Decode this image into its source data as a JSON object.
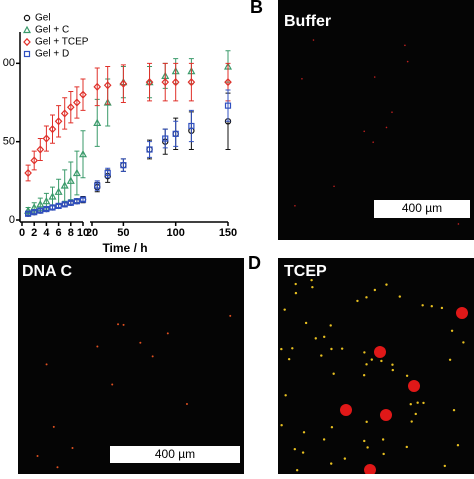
{
  "chart_data": {
    "type": "line",
    "x_label": "Time / h",
    "x_segments": [
      [
        0,
        10
      ],
      [
        20,
        150
      ]
    ],
    "xticks": [
      0,
      2,
      4,
      6,
      8,
      10,
      20,
      50,
      100,
      150
    ],
    "ylim": [
      0,
      120
    ],
    "yticks": [
      0,
      50,
      {
        "value": 100,
        "label": "00"
      }
    ],
    "legend": "top-left",
    "series": [
      {
        "name": "Gel",
        "color": "#111111",
        "marker": "circle",
        "x": [
          1,
          2,
          3,
          4,
          5,
          6,
          7,
          8,
          9,
          10,
          25,
          35,
          50,
          75,
          90,
          100,
          115,
          150
        ],
        "values": [
          4,
          5,
          6,
          7,
          8,
          9,
          10,
          11,
          12,
          13,
          21,
          28,
          35,
          45,
          50,
          55,
          57,
          63
        ],
        "errors": [
          1,
          1,
          1,
          1,
          1,
          1,
          1,
          1,
          1,
          2,
          3,
          4,
          4,
          6,
          8,
          10,
          12,
          18
        ]
      },
      {
        "name": "Gel + C",
        "color": "#3a9a6a",
        "marker": "triangle",
        "x": [
          1,
          2,
          3,
          4,
          5,
          6,
          7,
          8,
          9,
          10,
          25,
          35,
          50,
          75,
          90,
          100,
          115,
          150
        ],
        "values": [
          6,
          8,
          10,
          12,
          15,
          18,
          22,
          25,
          30,
          42,
          62,
          75,
          88,
          88,
          92,
          95,
          95,
          98
        ],
        "errors": [
          2,
          3,
          4,
          5,
          6,
          8,
          10,
          12,
          14,
          15,
          15,
          15,
          10,
          10,
          8,
          8,
          8,
          10
        ]
      },
      {
        "name": "Gel + TCEP",
        "color": "#e0302a",
        "marker": "diamond",
        "x": [
          1,
          2,
          3,
          4,
          5,
          6,
          7,
          8,
          9,
          10,
          25,
          35,
          50,
          75,
          90,
          100,
          115,
          150
        ],
        "values": [
          30,
          38,
          45,
          52,
          58,
          63,
          68,
          72,
          75,
          80,
          85,
          86,
          87,
          88,
          88,
          88,
          88,
          88
        ],
        "errors": [
          5,
          6,
          7,
          8,
          9,
          10,
          10,
          10,
          10,
          10,
          12,
          12,
          12,
          12,
          12,
          12,
          12,
          12
        ]
      },
      {
        "name": "Gel + D",
        "color": "#3050c0",
        "marker": "square",
        "x": [
          1,
          2,
          3,
          4,
          5,
          6,
          7,
          8,
          9,
          10,
          25,
          35,
          50,
          75,
          90,
          100,
          115,
          150
        ],
        "values": [
          4,
          5,
          6,
          7,
          8,
          9,
          10,
          11,
          12,
          13,
          22,
          30,
          35,
          45,
          52,
          55,
          60,
          73
        ],
        "errors": [
          1,
          1,
          1,
          1,
          1,
          1,
          1,
          1,
          1,
          1,
          3,
          3,
          4,
          5,
          6,
          8,
          10,
          10
        ]
      }
    ]
  },
  "panels": [
    {
      "letter": "B",
      "label": "Buffer",
      "scale_bar": "400 µm"
    },
    {
      "label": "DNA C",
      "scale_bar": "400 µm"
    },
    {
      "letter": "D",
      "label": "TCEP"
    }
  ]
}
